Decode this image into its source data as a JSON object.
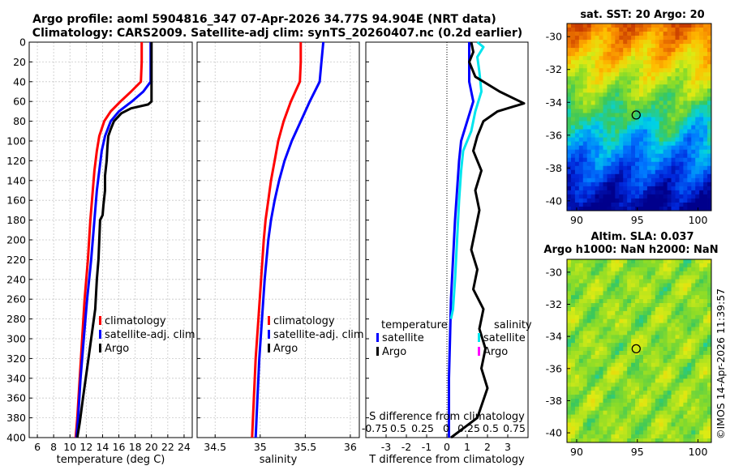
{
  "header": {
    "title_line1": "Argo profile: aoml 5904816_347 07-Apr-2026 34.77S 94.904E (NRT data)",
    "title_line2": "Climatology: CARS2009. Satellite-adj clim: synTS_20260407.nc (0.2d earlier)"
  },
  "colors": {
    "climatology": "#ff0000",
    "satellite": "#0000ff",
    "argo": "#000000",
    "sat_salinity": "#00e5ee",
    "argo_salinity": "#ff00ff"
  },
  "chart_data": [
    {
      "type": "line",
      "name": "temperature",
      "xlabel": "temperature (deg C)",
      "ylim": [
        0,
        400
      ],
      "y_reversed": true,
      "xlim": [
        5,
        25
      ],
      "xticks": [
        6,
        8,
        10,
        12,
        14,
        16,
        18,
        20,
        22,
        24
      ],
      "yticks": [
        0,
        20,
        40,
        60,
        80,
        100,
        120,
        140,
        160,
        180,
        200,
        220,
        240,
        260,
        280,
        300,
        320,
        340,
        360,
        380,
        400
      ],
      "grid": true,
      "legend": [
        "climatology",
        "satellite-adj. clim",
        "Argo"
      ],
      "series": [
        {
          "name": "climatology",
          "color": "#ff0000",
          "points": [
            [
              18.8,
              0
            ],
            [
              18.8,
              20
            ],
            [
              18.7,
              40
            ],
            [
              17.5,
              50
            ],
            [
              16.2,
              60
            ],
            [
              15.0,
              70
            ],
            [
              14.2,
              80
            ],
            [
              13.6,
              95
            ],
            [
              13.3,
              110
            ],
            [
              13.0,
              130
            ],
            [
              12.8,
              150
            ],
            [
              12.5,
              180
            ],
            [
              12.2,
              220
            ],
            [
              11.8,
              260
            ],
            [
              11.5,
              300
            ],
            [
              11.2,
              340
            ],
            [
              10.9,
              380
            ],
            [
              10.7,
              400
            ]
          ]
        },
        {
          "name": "satellite-adj. clim",
          "color": "#0000ff",
          "points": [
            [
              19.9,
              0
            ],
            [
              19.9,
              20
            ],
            [
              19.9,
              40
            ],
            [
              19.0,
              50
            ],
            [
              17.6,
              60
            ],
            [
              16.0,
              70
            ],
            [
              15.0,
              80
            ],
            [
              14.3,
              95
            ],
            [
              13.9,
              110
            ],
            [
              13.6,
              130
            ],
            [
              13.3,
              150
            ],
            [
              13.0,
              180
            ],
            [
              12.6,
              220
            ],
            [
              12.1,
              260
            ],
            [
              11.7,
              300
            ],
            [
              11.3,
              340
            ],
            [
              11.0,
              380
            ],
            [
              10.8,
              400
            ]
          ]
        },
        {
          "name": "Argo",
          "color": "#000000",
          "points": [
            [
              20.0,
              0
            ],
            [
              20.0,
              30
            ],
            [
              20.0,
              50
            ],
            [
              20.0,
              60
            ],
            [
              19.6,
              63
            ],
            [
              17.5,
              67
            ],
            [
              16.3,
              72
            ],
            [
              15.4,
              80
            ],
            [
              15.0,
              88
            ],
            [
              14.7,
              95
            ],
            [
              14.6,
              105
            ],
            [
              14.5,
              120
            ],
            [
              14.3,
              135
            ],
            [
              14.3,
              150
            ],
            [
              14.1,
              165
            ],
            [
              14.0,
              175
            ],
            [
              13.7,
              180
            ],
            [
              13.6,
              200
            ],
            [
              13.5,
              220
            ],
            [
              13.3,
              240
            ],
            [
              13.1,
              270
            ],
            [
              12.6,
              300
            ],
            [
              12.1,
              330
            ],
            [
              11.6,
              360
            ],
            [
              11.2,
              385
            ],
            [
              10.9,
              400
            ]
          ]
        }
      ]
    },
    {
      "type": "line",
      "name": "salinity",
      "xlabel": "salinity",
      "ylim": [
        0,
        400
      ],
      "y_reversed": true,
      "xlim": [
        34.3,
        36.1
      ],
      "xticks": [
        34.5,
        35,
        35.5,
        36
      ],
      "xtick_labels": [
        "34.5",
        "35",
        "35.5",
        "36"
      ],
      "grid": true,
      "legend": [
        "climatology",
        "satellite-adj. clim",
        "Argo"
      ],
      "series": [
        {
          "name": "climatology",
          "color": "#ff0000",
          "points": [
            [
              35.45,
              0
            ],
            [
              35.45,
              20
            ],
            [
              35.44,
              40
            ],
            [
              35.34,
              60
            ],
            [
              35.26,
              80
            ],
            [
              35.2,
              100
            ],
            [
              35.16,
              120
            ],
            [
              35.12,
              140
            ],
            [
              35.09,
              160
            ],
            [
              35.06,
              180
            ],
            [
              35.04,
              200
            ],
            [
              35.01,
              240
            ],
            [
              34.98,
              280
            ],
            [
              34.95,
              320
            ],
            [
              34.93,
              360
            ],
            [
              34.91,
              400
            ]
          ]
        },
        {
          "name": "satellite-adj. clim",
          "color": "#0000ff",
          "points": [
            [
              35.7,
              0
            ],
            [
              35.68,
              20
            ],
            [
              35.66,
              40
            ],
            [
              35.55,
              60
            ],
            [
              35.45,
              80
            ],
            [
              35.35,
              100
            ],
            [
              35.27,
              120
            ],
            [
              35.21,
              140
            ],
            [
              35.16,
              160
            ],
            [
              35.12,
              180
            ],
            [
              35.09,
              200
            ],
            [
              35.05,
              240
            ],
            [
              35.02,
              280
            ],
            [
              34.99,
              320
            ],
            [
              34.97,
              360
            ],
            [
              34.95,
              400
            ]
          ]
        },
        {
          "name": "Argo",
          "color": "#000000",
          "points": [
            [
              34.95,
              400
            ]
          ]
        }
      ]
    },
    {
      "type": "line",
      "name": "difference",
      "xlabel": "T difference from climatology",
      "top_axis_label": "S difference from climatology",
      "top_ticks": [
        "-0.75",
        "0.5",
        "0.25",
        "0",
        "0.25",
        "0.5",
        "0.75"
      ],
      "ylim": [
        0,
        400
      ],
      "y_reversed": true,
      "xlim": [
        -4,
        4
      ],
      "xticks": [
        -3,
        -2,
        -1,
        0,
        1,
        2,
        3
      ],
      "legend": {
        "temperature": [
          "satellite",
          "Argo"
        ],
        "salinity": [
          "satellite",
          "Argo"
        ]
      },
      "series": [
        {
          "name": "T satellite",
          "color": "#0000ff",
          "points": [
            [
              1.1,
              0
            ],
            [
              1.1,
              40
            ],
            [
              1.3,
              60
            ],
            [
              1.0,
              80
            ],
            [
              0.7,
              100
            ],
            [
              0.6,
              120
            ],
            [
              0.5,
              150
            ],
            [
              0.4,
              180
            ],
            [
              0.3,
              220
            ],
            [
              0.2,
              260
            ],
            [
              0.15,
              300
            ],
            [
              0.1,
              340
            ],
            [
              0.1,
              380
            ],
            [
              0.1,
              400
            ]
          ]
        },
        {
          "name": "S satellite",
          "color": "#00e5ee",
          "points": [
            [
              1.5,
              0
            ],
            [
              1.8,
              5
            ],
            [
              1.5,
              15
            ],
            [
              1.6,
              30
            ],
            [
              1.7,
              50
            ],
            [
              1.4,
              70
            ],
            [
              1.2,
              90
            ],
            [
              0.8,
              110
            ],
            [
              0.7,
              130
            ],
            [
              0.6,
              160
            ],
            [
              0.5,
              200
            ],
            [
              0.4,
              240
            ],
            [
              0.3,
              270
            ],
            [
              0.2,
              280
            ]
          ]
        },
        {
          "name": "T Argo",
          "color": "#000000",
          "points": [
            [
              1.2,
              0
            ],
            [
              1.3,
              10
            ],
            [
              1.1,
              20
            ],
            [
              1.4,
              35
            ],
            [
              2.6,
              50
            ],
            [
              3.8,
              62
            ],
            [
              2.5,
              70
            ],
            [
              1.8,
              80
            ],
            [
              1.5,
              95
            ],
            [
              1.3,
              110
            ],
            [
              1.7,
              130
            ],
            [
              1.4,
              150
            ],
            [
              1.6,
              170
            ],
            [
              1.4,
              190
            ],
            [
              1.2,
              210
            ],
            [
              1.5,
              230
            ],
            [
              1.3,
              250
            ],
            [
              1.8,
              270
            ],
            [
              1.6,
              290
            ],
            [
              1.9,
              310
            ],
            [
              1.7,
              330
            ],
            [
              2.0,
              350
            ],
            [
              1.5,
              380
            ],
            [
              0.2,
              400
            ]
          ]
        }
      ]
    }
  ],
  "maps": [
    {
      "title": "sat. SST: 20 Argo: 20",
      "xticks": [
        "90",
        "95",
        "100"
      ],
      "yticks": [
        "-30",
        "-32",
        "-34",
        "-36",
        "-38",
        "-40"
      ],
      "marker_lon": 94.9,
      "marker_lat": -34.77
    },
    {
      "title_line1": "Altim. SLA: 0.037",
      "title_line2": "Argo h1000: NaN h2000: NaN",
      "xticks": [
        "90",
        "95",
        "100"
      ],
      "yticks": [
        "-30",
        "-32",
        "-34",
        "-36",
        "-38",
        "-40"
      ],
      "marker_lon": 94.9,
      "marker_lat": -34.77
    }
  ],
  "legend_text": {
    "climatology": "climatology",
    "satellite_adj": "satellite-adj. clim",
    "argo": "Argo",
    "temperature": "temperature",
    "salinity": "salinity",
    "satellite": "satellite"
  },
  "watermark": "©IMOS 14-Apr-2026 11:39:57"
}
